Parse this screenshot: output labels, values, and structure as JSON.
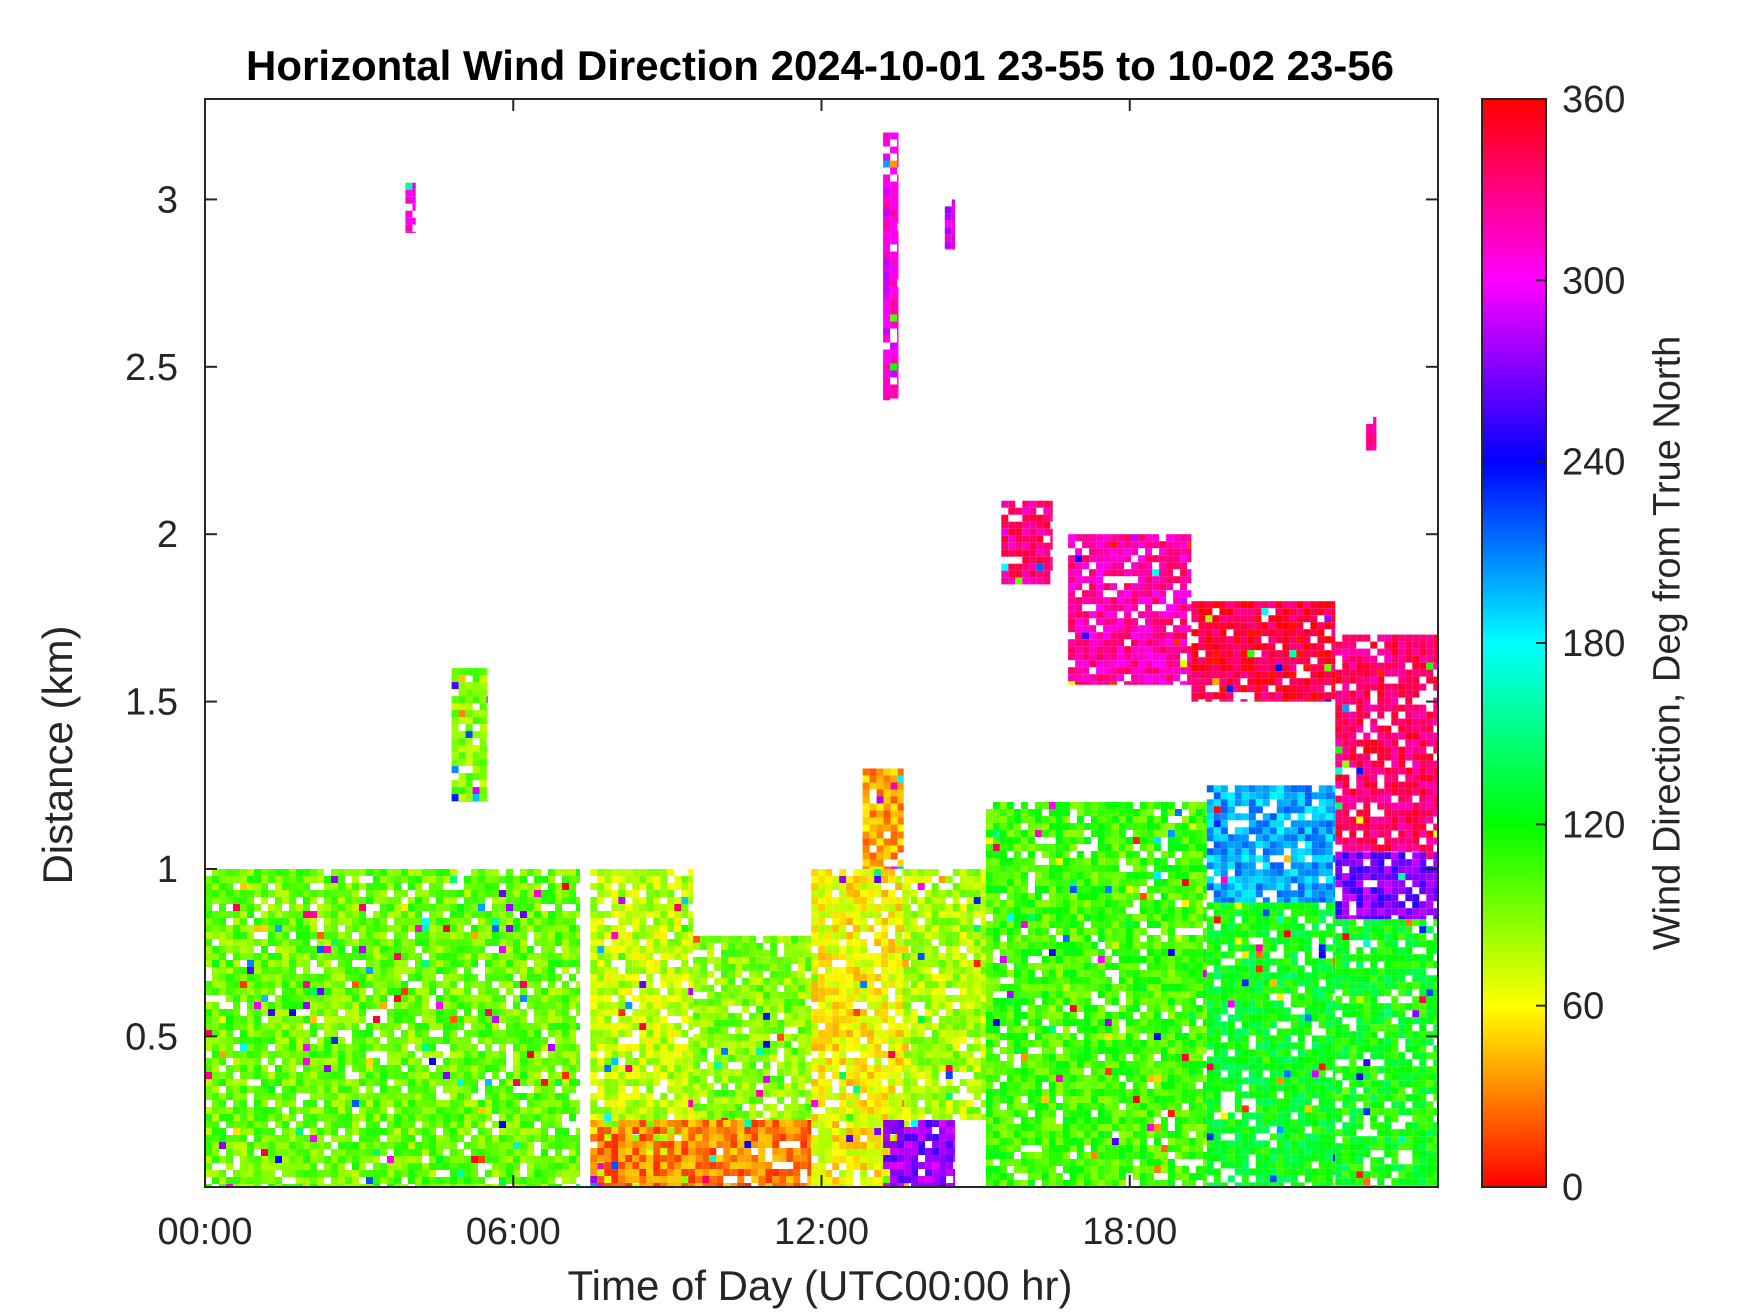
{
  "chart_data": {
    "type": "heatmap",
    "title": "Horizontal Wind Direction 2024-10-01 23-55 to 10-02 23-56",
    "xlabel": "Time of Day (UTC00:00 hr)",
    "ylabel": "Distance (km)",
    "colorbar_label": "Wind Direction, Deg from True North",
    "x_unit": "hours (UTC)",
    "xlim": [
      0,
      24
    ],
    "ylim": [
      0.05,
      3.3
    ],
    "x_ticks": [
      0,
      6,
      12,
      18
    ],
    "x_tick_labels": [
      "00:00",
      "06:00",
      "12:00",
      "18:00"
    ],
    "y_ticks": [
      0.5,
      1,
      1.5,
      2,
      2.5,
      3
    ],
    "y_tick_labels": [
      "0.5",
      "1",
      "1.5",
      "2",
      "2.5",
      "3"
    ],
    "colorbar_range": [
      0,
      360
    ],
    "colorbar_ticks": [
      0,
      60,
      120,
      180,
      240,
      300,
      360
    ],
    "colorbar_tick_labels": [
      "0",
      "60",
      "120",
      "180",
      "240",
      "300",
      "360"
    ],
    "colormap": "hsv",
    "grid": false,
    "regions": [
      {
        "t0": 0.0,
        "t1": 7.3,
        "z0": 0.05,
        "z1": 1.0,
        "direction_deg": 95,
        "note_range": [
          85,
          110
        ]
      },
      {
        "t0": 4.8,
        "t1": 5.5,
        "z0": 1.2,
        "z1": 1.6,
        "direction_deg": 90
      },
      {
        "t0": 7.5,
        "t1": 9.5,
        "z0": 0.05,
        "z1": 1.0,
        "direction_deg": 75
      },
      {
        "t0": 7.5,
        "t1": 11.8,
        "z0": 0.05,
        "z1": 0.25,
        "direction_deg": 30
      },
      {
        "t0": 9.5,
        "t1": 11.8,
        "z0": 0.25,
        "z1": 0.8,
        "direction_deg": 90
      },
      {
        "t0": 11.8,
        "t1": 13.7,
        "z0": 0.05,
        "z1": 1.0,
        "direction_deg": 60
      },
      {
        "t0": 12.8,
        "t1": 13.6,
        "z0": 1.0,
        "z1": 1.3,
        "direction_deg": 40
      },
      {
        "t0": 13.2,
        "t1": 14.6,
        "z0": 0.05,
        "z1": 0.25,
        "direction_deg": 275
      },
      {
        "t0": 13.6,
        "t1": 15.2,
        "z0": 0.25,
        "z1": 1.0,
        "direction_deg": 80
      },
      {
        "t0": 15.2,
        "t1": 19.5,
        "z0": 0.05,
        "z1": 1.2,
        "direction_deg": 105
      },
      {
        "t0": 19.5,
        "t1": 22.0,
        "z0": 0.05,
        "z1": 0.9,
        "direction_deg": 125
      },
      {
        "t0": 19.5,
        "t1": 22.0,
        "z0": 0.9,
        "z1": 1.25,
        "direction_deg": 200
      },
      {
        "t0": 22.0,
        "t1": 24.0,
        "z0": 0.05,
        "z1": 0.85,
        "direction_deg": 120
      },
      {
        "t0": 22.0,
        "t1": 24.0,
        "z0": 0.85,
        "z1": 1.05,
        "direction_deg": 270
      },
      {
        "t0": 22.0,
        "t1": 24.0,
        "z0": 1.05,
        "z1": 1.7,
        "direction_deg": 335
      },
      {
        "t0": 16.8,
        "t1": 19.2,
        "z0": 1.55,
        "z1": 2.0,
        "direction_deg": 320
      },
      {
        "t0": 19.2,
        "t1": 22.0,
        "z0": 1.5,
        "z1": 1.8,
        "direction_deg": 345
      },
      {
        "t0": 13.2,
        "t1": 13.5,
        "z0": 2.4,
        "z1": 3.2,
        "direction_deg": 305
      },
      {
        "t0": 14.4,
        "t1": 14.6,
        "z0": 2.85,
        "z1": 3.0,
        "direction_deg": 300
      },
      {
        "t0": 3.9,
        "t1": 4.1,
        "z0": 2.9,
        "z1": 3.05,
        "direction_deg": 300
      },
      {
        "t0": 15.5,
        "t1": 16.5,
        "z0": 1.85,
        "z1": 2.1,
        "direction_deg": 330
      },
      {
        "t0": 22.6,
        "t1": 22.8,
        "z0": 2.25,
        "z1": 2.35,
        "direction_deg": 320
      }
    ]
  }
}
